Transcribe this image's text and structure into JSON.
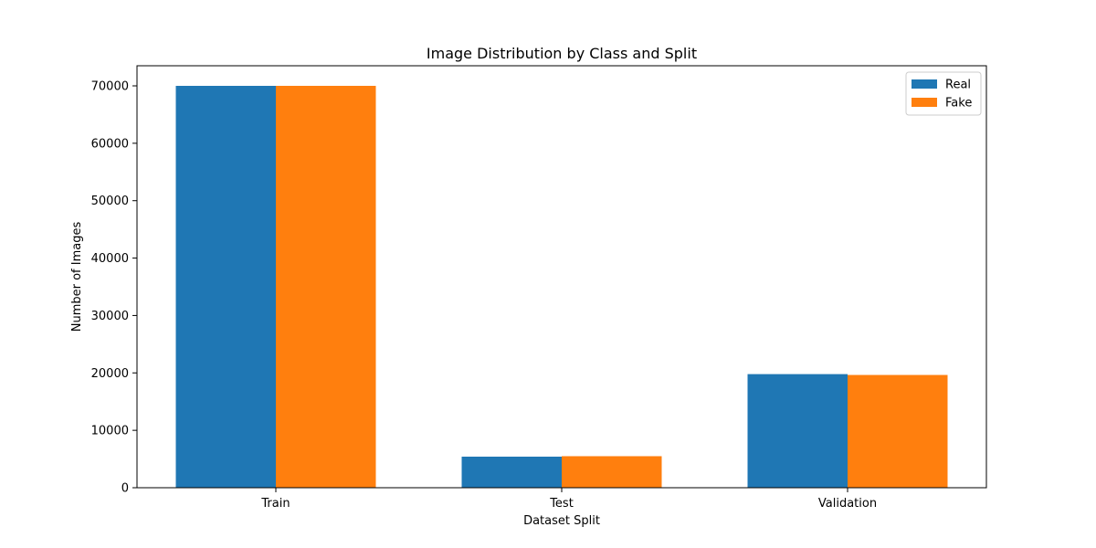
{
  "chart_data": {
    "type": "bar",
    "title": "Image Distribution by Class and Split",
    "xlabel": "Dataset Split",
    "ylabel": "Number of Images",
    "categories": [
      "Train",
      "Test",
      "Validation"
    ],
    "series": [
      {
        "name": "Real",
        "values": [
          70000,
          5413,
          19787
        ],
        "color": "#1f77b4"
      },
      {
        "name": "Fake",
        "values": [
          70001,
          5492,
          19641
        ],
        "color": "#ff7f0e"
      }
    ],
    "ylim": [
      0,
      73500
    ],
    "yticks": [
      0,
      10000,
      20000,
      30000,
      40000,
      50000,
      60000,
      70000
    ],
    "grid": false,
    "legend_position": "top-right"
  }
}
